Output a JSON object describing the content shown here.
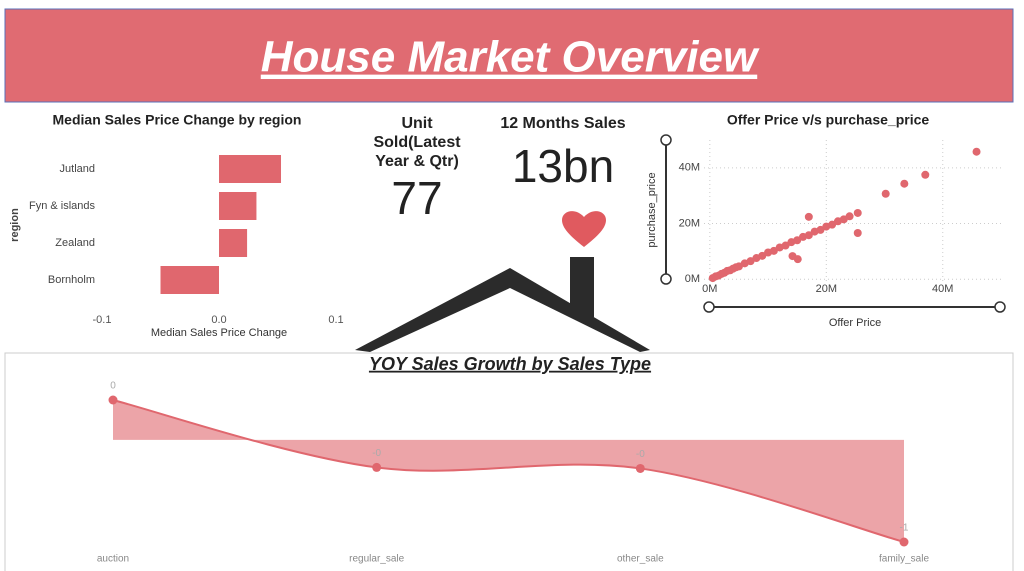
{
  "header": {
    "title": "House Market Overview"
  },
  "cards": [
    {
      "title": "Unit Sold(Latest Year & Qtr)",
      "value": 77
    },
    {
      "title": "12 Months Sales",
      "value": "13bn"
    }
  ],
  "chart_data": [
    {
      "type": "hbar",
      "title": "Median Sales Price Change by region",
      "xlabel": "Median Sales Price Change",
      "ylabel": "region",
      "categories": [
        "Jutland",
        "Fyn & islands",
        "Zealand",
        "Bornholm"
      ],
      "values": [
        0.053,
        0.032,
        0.024,
        -0.05
      ],
      "color": "#e0676e",
      "xlim": [
        -0.1,
        0.1
      ],
      "xticks": [
        -0.1,
        {
          "value": 0,
          "label": "0.0"
        },
        0.1
      ]
    },
    {
      "type": "scatter",
      "title": "Offer Price v/s purchase_price",
      "xlabel": "Offer Price",
      "ylabel": "purchase_price",
      "color": "#e0676e",
      "x": [
        500000,
        1000000,
        1500000,
        2000000,
        2500000,
        3000000,
        3500000,
        4000000,
        4500000,
        5000000,
        6000000,
        7000000,
        8000000,
        9000000,
        10000000,
        11000000,
        12000000,
        13000000,
        14000000,
        15000000,
        16000000,
        17000000,
        18000000,
        19000000,
        20000000,
        21000000,
        22000000,
        23000000,
        24000000,
        25400000,
        17000000,
        14200000,
        15100000,
        25400000,
        30200000,
        33400000,
        37000000,
        45800000
      ],
      "values": [
        400000,
        1000000,
        1300000,
        1900000,
        2300000,
        3000000,
        3200000,
        3800000,
        4300000,
        4600000,
        5700000,
        6500000,
        7600000,
        8400000,
        9600000,
        10200000,
        11400000,
        12100000,
        13300000,
        14000000,
        15200000,
        15800000,
        17100000,
        17700000,
        18900000,
        19600000,
        20800000,
        21500000,
        22600000,
        23800000,
        22400000,
        8300000,
        7200000,
        16600000,
        30700000,
        34300000,
        37500000,
        45800000
      ],
      "xlim": [
        -1000000,
        50000000
      ],
      "ylim": [
        -1000000,
        50000000
      ],
      "xticks": [
        {
          "value": 0,
          "label": "0M"
        },
        {
          "value": 20000000,
          "label": "20M"
        },
        {
          "value": 40000000,
          "label": "40M"
        }
      ],
      "yticks": [
        {
          "value": 0,
          "label": "0M"
        },
        {
          "value": 20000000,
          "label": "20M"
        },
        {
          "value": 40000000,
          "label": "40M"
        }
      ],
      "grid": true
    },
    {
      "type": "area",
      "title": "YOY Sales Growth by Sales Type",
      "color": "#e0676e",
      "categories": [
        "auction",
        "regular_sale",
        "other_sale",
        "family_sale"
      ],
      "values": [
        0.39,
        -0.27,
        -0.28,
        -1.0
      ],
      "value_labels": [
        "0",
        "-0",
        "-0",
        "-1"
      ]
    }
  ]
}
